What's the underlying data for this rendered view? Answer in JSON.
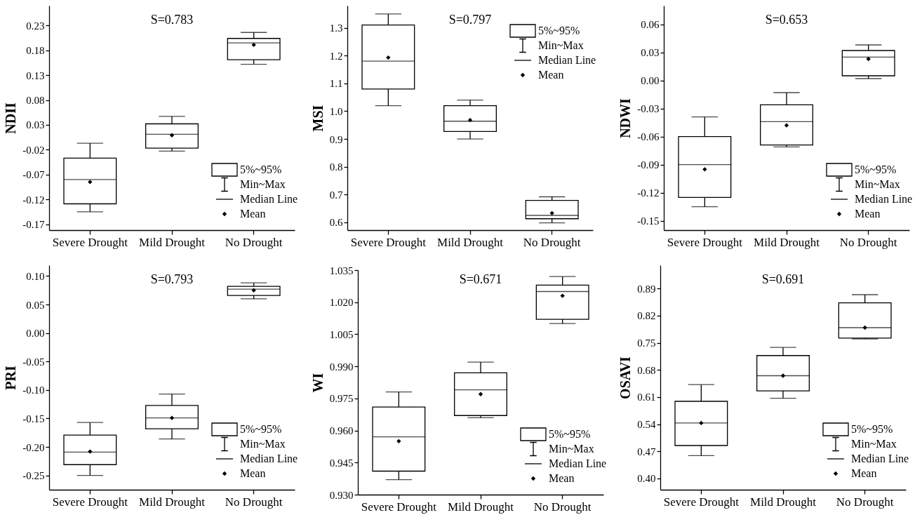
{
  "chart_data": [
    {
      "type": "box",
      "title": "S=0.783",
      "ylabel": "NDII",
      "categories": [
        "Severe Drought",
        "Mild Drought",
        "No Drought"
      ],
      "boxes": [
        {
          "low": -0.145,
          "q1": -0.129,
          "median": -0.08,
          "q3": -0.037,
          "high": -0.007,
          "mean": -0.085
        },
        {
          "low": -0.023,
          "q1": -0.017,
          "median": 0.011,
          "q3": 0.032,
          "high": 0.047,
          "mean": 0.009
        },
        {
          "low": 0.152,
          "q1": 0.161,
          "median": 0.195,
          "q3": 0.204,
          "high": 0.216,
          "mean": 0.191
        }
      ],
      "ylim": [
        -0.182,
        0.27
      ],
      "yticks": [
        -0.17,
        -0.12,
        -0.07,
        -0.02,
        0.03,
        0.08,
        0.13,
        0.18,
        0.23
      ],
      "annotations": [
        "5%~95%",
        "Min~Max",
        "Median Line",
        "Mean"
      ]
    },
    {
      "type": "box",
      "title": "S=0.797",
      "ylabel": "MSI",
      "categories": [
        "Severe Drought",
        "Mild Drought",
        "No Drought"
      ],
      "boxes": [
        {
          "low": 1.02,
          "q1": 1.08,
          "median": 1.18,
          "q3": 1.31,
          "high": 1.35,
          "mean": 1.193
        },
        {
          "low": 0.9,
          "q1": 0.927,
          "median": 0.964,
          "q3": 1.02,
          "high": 1.04,
          "mean": 0.968
        },
        {
          "low": 0.598,
          "q1": 0.613,
          "median": 0.625,
          "q3": 0.679,
          "high": 0.692,
          "mean": 0.633
        }
      ],
      "ylim": [
        0.572,
        1.38
      ],
      "yticks": [
        0.6,
        0.7,
        0.8,
        0.9,
        {
          "value": 1,
          "label": "1.0"
        },
        1.1,
        1.2,
        1.3
      ],
      "annotations": [
        "5%~95%",
        "Min~Max",
        "Median Line",
        "Mean"
      ]
    },
    {
      "type": "box",
      "title": "S=0.653",
      "ylabel": "NDWI",
      "categories": [
        "Severe Drought",
        "Mild Drought",
        "No Drought"
      ],
      "boxes": [
        {
          "low": -0.135,
          "q1": -0.125,
          "median": -0.09,
          "q3": -0.06,
          "high": -0.039,
          "mean": -0.095
        },
        {
          "low": -0.071,
          "q1": -0.069,
          "median": -0.044,
          "q3": -0.026,
          "high": -0.013,
          "mean": -0.048
        },
        {
          "low": 0.002,
          "q1": 0.005,
          "median": 0.025,
          "q3": 0.032,
          "high": 0.038,
          "mean": 0.023
        }
      ],
      "ylim": [
        -0.16,
        0.08
      ],
      "yticks": [
        -0.15,
        -0.12,
        -0.09,
        -0.06,
        -0.03,
        {
          "value": 0,
          "label": "0.00"
        },
        0.03,
        0.06
      ],
      "annotations": [
        "5%~95%",
        "Min~Max",
        "Median Line",
        "Mean"
      ]
    },
    {
      "type": "box",
      "title": "S=0.793",
      "ylabel": "PRI",
      "categories": [
        "Severe Drought",
        "Mild Drought",
        "No Drought"
      ],
      "boxes": [
        {
          "low": -0.25,
          "q1": -0.231,
          "median": -0.209,
          "q3": -0.179,
          "high": -0.157,
          "mean": -0.208
        },
        {
          "low": -0.186,
          "q1": -0.168,
          "median": -0.149,
          "q3": -0.127,
          "high": -0.107,
          "mean": -0.149
        },
        {
          "low": 0.06,
          "q1": 0.066,
          "median": 0.077,
          "q3": 0.082,
          "high": 0.088,
          "mean": 0.075
        }
      ],
      "ylim": [
        -0.275,
        0.119
      ],
      "yticks": [
        {
          "value": -0.25,
          "label": "-0.25"
        },
        {
          "value": -0.2,
          "label": "-0.20"
        },
        {
          "value": -0.15,
          "label": "-0.15"
        },
        {
          "value": -0.1,
          "label": "-0.10"
        },
        -0.05,
        {
          "value": 0,
          "label": "0.00"
        },
        0.05,
        {
          "value": 0.1,
          "label": "0.10"
        }
      ],
      "annotations": [
        "5%~95%",
        "Min~Max",
        "Median Line",
        "Mean"
      ]
    },
    {
      "type": "box",
      "title": "S=0.671",
      "ylabel": "WI",
      "categories": [
        "Severe Drought",
        "Mild Drought",
        "No Drought"
      ],
      "boxes": [
        {
          "low": 0.937,
          "q1": 0.941,
          "median": 0.957,
          "q3": 0.971,
          "high": 0.978,
          "mean": 0.955
        },
        {
          "low": 0.966,
          "q1": 0.967,
          "median": 0.979,
          "q3": 0.987,
          "high": 0.992,
          "mean": 0.977
        },
        {
          "low": 1.01,
          "q1": 1.012,
          "median": 1.025,
          "q3": 1.028,
          "high": 1.032,
          "mean": 1.023
        }
      ],
      "ylim": [
        0.93,
        1.035
      ],
      "yticks": [
        {
          "value": 0.93,
          "label": "0.930"
        },
        0.945,
        {
          "value": 0.96,
          "label": "0.960"
        },
        0.975,
        {
          "value": 0.99,
          "label": "0.990"
        },
        1.005,
        {
          "value": 1.02,
          "label": "1.020"
        },
        1.035
      ],
      "annotations": [
        "5%~95%",
        "Min~Max",
        "Median Line",
        "Mean"
      ]
    },
    {
      "type": "box",
      "title": "S=0.691",
      "ylabel": "OSAVI",
      "categories": [
        "Severe Drought",
        "Mild Drought",
        "No Drought"
      ],
      "boxes": [
        {
          "low": 0.459,
          "q1": 0.485,
          "median": 0.543,
          "q3": 0.599,
          "high": 0.642,
          "mean": 0.543
        },
        {
          "low": 0.607,
          "q1": 0.626,
          "median": 0.665,
          "q3": 0.717,
          "high": 0.738,
          "mean": 0.665
        },
        {
          "low": 0.76,
          "q1": 0.762,
          "median": 0.789,
          "q3": 0.853,
          "high": 0.874,
          "mean": 0.789
        }
      ],
      "ylim": [
        0.371,
        0.95
      ],
      "yticks": [
        {
          "value": 0.4,
          "label": "0.40"
        },
        0.47,
        0.54,
        0.61,
        0.68,
        0.75,
        0.82,
        0.89
      ],
      "annotations": [
        "5%~95%",
        "Min~Max",
        "Median Line",
        "Mean"
      ]
    }
  ]
}
